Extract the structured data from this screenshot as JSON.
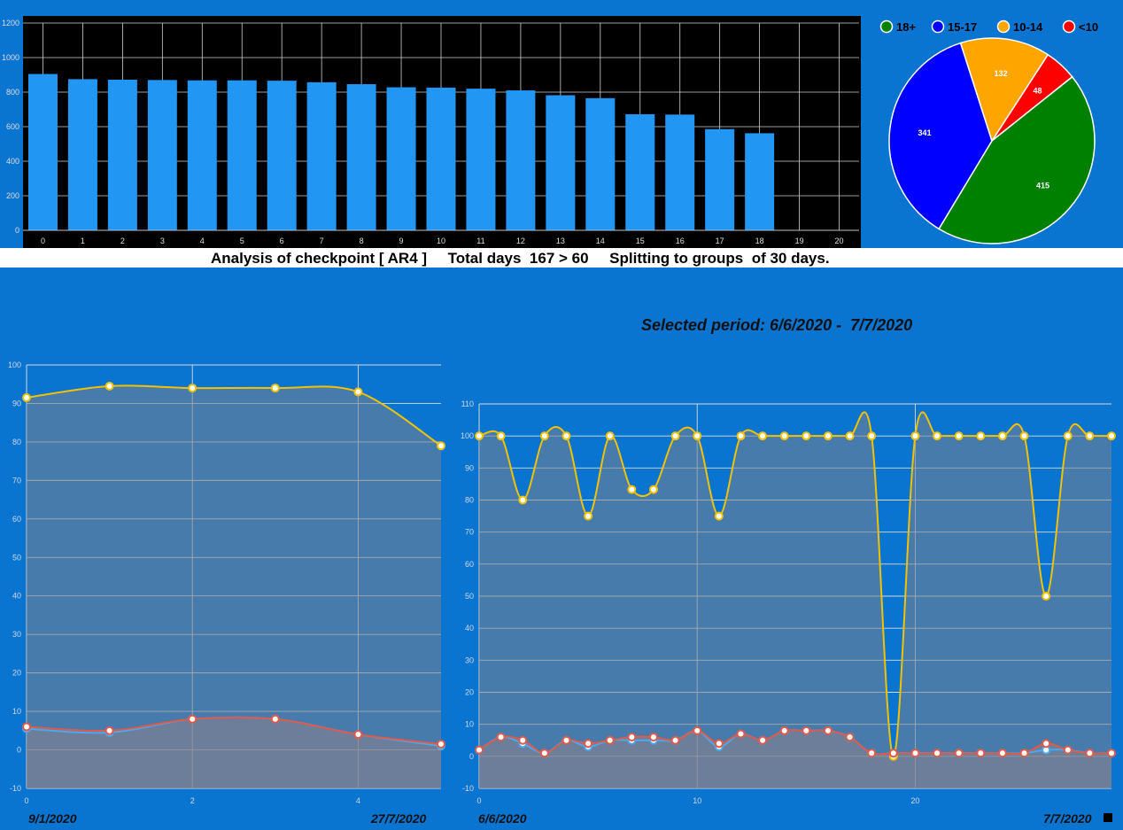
{
  "header": {
    "analysis_text": "Analysis of checkpoint [ AR4 ]     Total days  167 > 60     Splitting to groups  of 30 days.",
    "selected_period": "Selected period: 6/6/2020 -  7/7/2020"
  },
  "dates": {
    "left_start": "9/1/2020",
    "left_end": "27/7/2020",
    "right_start": "6/6/2020",
    "right_end": "7/7/2020"
  },
  "colors": {
    "background": "#0a74d1",
    "bar": "#2196f3",
    "line_primary": "#f2c200",
    "line_secondary": "#e05a4a"
  },
  "chart_data": [
    {
      "type": "bar",
      "categories": [
        "0",
        "1",
        "2",
        "3",
        "4",
        "5",
        "6",
        "7",
        "8",
        "9",
        "10",
        "11",
        "12",
        "13",
        "14",
        "15",
        "16",
        "17",
        "18",
        "19",
        "20"
      ],
      "values": [
        905,
        875,
        872,
        870,
        868,
        868,
        866,
        857,
        846,
        828,
        826,
        820,
        810,
        782,
        765,
        672,
        670,
        586,
        562,
        null,
        null
      ],
      "ylim": [
        0,
        1200
      ],
      "yticks": [
        0,
        200,
        400,
        600,
        800,
        1000,
        1200
      ],
      "grid": true
    },
    {
      "type": "pie",
      "legend_position": "top",
      "slices": [
        {
          "label": "18+",
          "value": 415,
          "color": "#008000"
        },
        {
          "label": "15-17",
          "value": 341,
          "color": "#0000ff"
        },
        {
          "label": "10-14",
          "value": 132,
          "color": "#ffa500"
        },
        {
          "label": "<10",
          "value": 48,
          "color": "#ff0000"
        }
      ]
    },
    {
      "type": "area",
      "x": [
        0,
        1,
        2,
        3,
        4,
        5
      ],
      "series": [
        {
          "values": [
            91.5,
            94.5,
            94,
            94,
            93,
            79
          ],
          "color": "#f2c200"
        },
        {
          "values": [
            5.5,
            4.5,
            8,
            8,
            4,
            1
          ],
          "color": "#4aa8f0"
        },
        {
          "values": [
            6,
            5,
            8,
            8,
            4,
            1.5
          ],
          "color": "#e05a4a"
        }
      ],
      "ylim": [
        -10,
        100
      ],
      "yticks": [
        -10,
        0,
        10,
        20,
        30,
        40,
        50,
        60,
        70,
        80,
        90,
        100
      ],
      "xticks": [
        0,
        2,
        4
      ],
      "grid": true
    },
    {
      "type": "area",
      "x": [
        0,
        1,
        2,
        3,
        4,
        5,
        6,
        7,
        8,
        9,
        10,
        11,
        12,
        13,
        14,
        15,
        16,
        17,
        18,
        19,
        20,
        21,
        22,
        23,
        24,
        25,
        26,
        27,
        28,
        29
      ],
      "series": [
        {
          "values": [
            100,
            100,
            80,
            100,
            100,
            75,
            100,
            83.3,
            83.3,
            100,
            100,
            75,
            100,
            100,
            100,
            100,
            100,
            100,
            100,
            0,
            100,
            100,
            100,
            100,
            100,
            100,
            50,
            100,
            100,
            100
          ],
          "color": "#f2c200"
        },
        {
          "values": [
            2,
            6,
            4,
            1,
            5,
            3,
            5,
            5,
            5,
            5,
            8,
            3,
            7,
            5,
            8,
            8,
            8,
            6,
            1,
            1,
            1,
            1,
            1,
            1,
            1,
            1,
            2,
            2,
            1,
            1
          ],
          "color": "#4aa8f0"
        },
        {
          "values": [
            2,
            6,
            5,
            1,
            5,
            4,
            5,
            6,
            6,
            5,
            8,
            4,
            7,
            5,
            8,
            8,
            8,
            6,
            1,
            1,
            1,
            1,
            1,
            1,
            1,
            1,
            4,
            2,
            1,
            1
          ],
          "color": "#e05a4a"
        }
      ],
      "ylim": [
        -10,
        110
      ],
      "yticks": [
        -10,
        0,
        10,
        20,
        30,
        40,
        50,
        60,
        70,
        80,
        90,
        100,
        110
      ],
      "xticks": [
        0,
        10,
        20
      ],
      "grid": true
    }
  ]
}
